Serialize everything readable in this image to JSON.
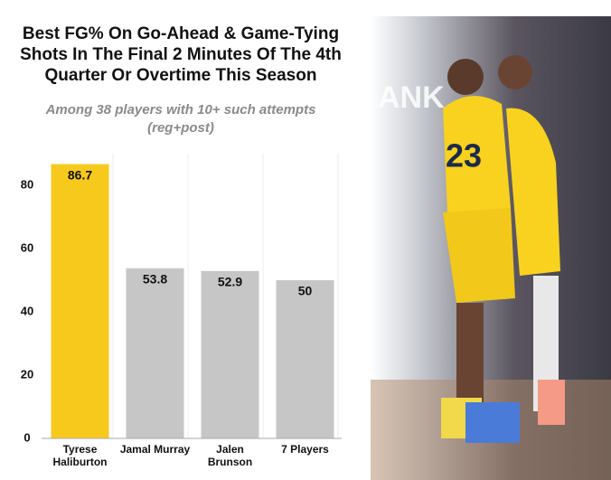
{
  "chart_data": {
    "type": "bar",
    "title": "Best FG% On Go-Ahead & Game-Tying Shots In The Final 2 Minutes Of The 4th Quarter Or Overtime This Season",
    "subtitle": "Among 38 players with 10+ such attempts (reg+post)",
    "categories": [
      "Tyrese Haliburton",
      "Jamal Murray",
      "Jalen Brunson",
      "7 Players"
    ],
    "values": [
      86.7,
      53.8,
      52.9,
      50
    ],
    "colors": [
      "#f8c91d",
      "#c6c6c6",
      "#c6c6c6",
      "#c6c6c6"
    ],
    "ylim": [
      0,
      90
    ],
    "yticks": [
      0,
      20,
      40,
      60,
      80
    ],
    "grid": false
  }
}
